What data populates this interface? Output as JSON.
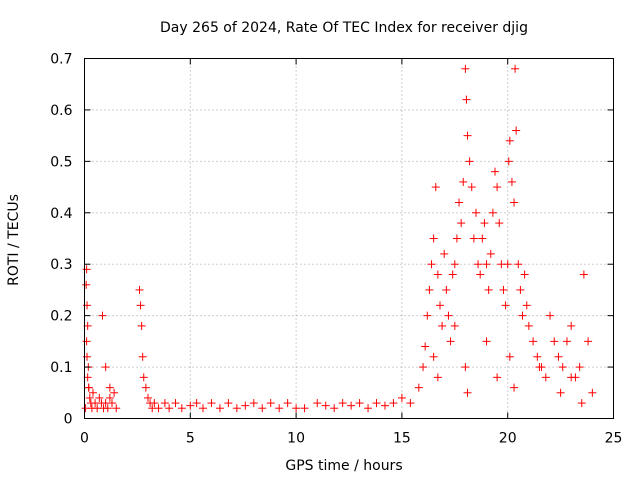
{
  "chart_data": {
    "type": "scatter",
    "title": "Day 265 of 2024, Rate Of TEC Index for receiver djig",
    "xlabel": "GPS time / hours",
    "ylabel": "ROTI / TECUs",
    "xlim": [
      0,
      25
    ],
    "ylim": [
      0,
      0.7
    ],
    "xticks": [
      "0",
      "5",
      "10",
      "15",
      "20",
      "25"
    ],
    "yticks": [
      "0",
      "0.1",
      "0.2",
      "0.3",
      "0.4",
      "0.5",
      "0.6",
      "0.7"
    ],
    "grid": true,
    "marker": "+",
    "color": "#ff0000",
    "series": [
      {
        "x": [
          0.05,
          0.08,
          0.1,
          0.12,
          0.15,
          0.18,
          0.2,
          0.25,
          0.3,
          0.35,
          0.4,
          0.5,
          0.6,
          0.7,
          0.8,
          0.9,
          1.0,
          1.1,
          1.2,
          1.3,
          1.4,
          1.5,
          0.1,
          0.12,
          0.15,
          0.2,
          0.85,
          1.0,
          1.2,
          2.6,
          2.65,
          2.7,
          2.75,
          2.8,
          2.9,
          3.0,
          3.1,
          3.2,
          3.3,
          3.5,
          3.8,
          4.0,
          4.3,
          4.6,
          5.0,
          5.3,
          5.6,
          6.0,
          6.4,
          6.8,
          7.2,
          7.6,
          8.0,
          8.4,
          8.8,
          9.2,
          9.6,
          10.0,
          10.4,
          11.0,
          11.4,
          11.8,
          12.2,
          12.6,
          13.0,
          13.4,
          13.8,
          14.2,
          14.6,
          15.0,
          15.4,
          15.8,
          16.0,
          16.1,
          16.2,
          16.3,
          16.4,
          16.5,
          16.6,
          16.7,
          16.8,
          16.9,
          17.0,
          17.1,
          17.2,
          17.3,
          17.4,
          17.5,
          17.6,
          17.7,
          17.8,
          17.9,
          18.0,
          18.05,
          18.1,
          18.2,
          18.3,
          18.4,
          18.5,
          18.6,
          18.7,
          18.8,
          18.9,
          19.0,
          19.1,
          19.2,
          19.3,
          19.4,
          19.5,
          19.6,
          19.7,
          19.8,
          19.9,
          20.0,
          20.05,
          20.1,
          20.2,
          20.3,
          20.35,
          20.4,
          20.5,
          20.6,
          20.7,
          20.8,
          20.9,
          21.0,
          21.2,
          21.4,
          21.6,
          21.8,
          22.0,
          22.2,
          22.4,
          22.6,
          22.8,
          23.0,
          23.2,
          23.4,
          23.6,
          23.8,
          24.0,
          16.5,
          16.7,
          17.5,
          18.0,
          18.1,
          19.0,
          19.5,
          20.1,
          20.3,
          21.5,
          22.5,
          23.0,
          23.5
        ],
        "y": [
          0.02,
          0.26,
          0.29,
          0.22,
          0.18,
          0.1,
          0.06,
          0.04,
          0.03,
          0.02,
          0.05,
          0.03,
          0.02,
          0.04,
          0.03,
          0.02,
          0.03,
          0.02,
          0.04,
          0.03,
          0.05,
          0.02,
          0.15,
          0.12,
          0.08,
          0.06,
          0.2,
          0.1,
          0.06,
          0.25,
          0.22,
          0.18,
          0.12,
          0.08,
          0.06,
          0.04,
          0.03,
          0.02,
          0.03,
          0.02,
          0.03,
          0.02,
          0.03,
          0.02,
          0.025,
          0.03,
          0.02,
          0.03,
          0.02,
          0.03,
          0.02,
          0.025,
          0.03,
          0.02,
          0.03,
          0.02,
          0.03,
          0.02,
          0.02,
          0.03,
          0.025,
          0.02,
          0.03,
          0.025,
          0.03,
          0.02,
          0.03,
          0.025,
          0.03,
          0.04,
          0.03,
          0.06,
          0.1,
          0.14,
          0.2,
          0.25,
          0.3,
          0.35,
          0.45,
          0.28,
          0.22,
          0.18,
          0.32,
          0.25,
          0.2,
          0.15,
          0.28,
          0.3,
          0.35,
          0.42,
          0.38,
          0.46,
          0.68,
          0.62,
          0.55,
          0.5,
          0.45,
          0.35,
          0.4,
          0.3,
          0.28,
          0.35,
          0.38,
          0.3,
          0.25,
          0.32,
          0.4,
          0.48,
          0.45,
          0.38,
          0.3,
          0.25,
          0.22,
          0.3,
          0.5,
          0.54,
          0.46,
          0.42,
          0.68,
          0.56,
          0.3,
          0.25,
          0.2,
          0.28,
          0.22,
          0.18,
          0.15,
          0.12,
          0.1,
          0.08,
          0.2,
          0.15,
          0.12,
          0.1,
          0.15,
          0.18,
          0.08,
          0.1,
          0.28,
          0.15,
          0.05,
          0.12,
          0.08,
          0.18,
          0.1,
          0.05,
          0.15,
          0.08,
          0.12,
          0.06,
          0.1,
          0.05,
          0.08,
          0.03
        ]
      }
    ]
  }
}
